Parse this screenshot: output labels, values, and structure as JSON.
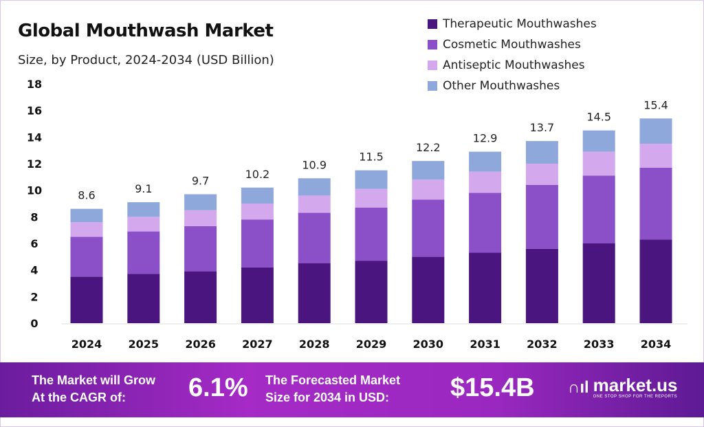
{
  "chart_data": {
    "type": "bar",
    "stacked": true,
    "title": "Global Mouthwash Market",
    "subtitle": "Size, by Product, 2024-2034 (USD Billion)",
    "categories": [
      "2024",
      "2025",
      "2026",
      "2027",
      "2028",
      "2029",
      "2030",
      "2031",
      "2032",
      "2033",
      "2034"
    ],
    "series": [
      {
        "name": "Therapeutic Mouthwashes",
        "color": "#4b1580",
        "values": [
          3.5,
          3.7,
          3.9,
          4.2,
          4.5,
          4.7,
          5.0,
          5.3,
          5.6,
          6.0,
          6.3
        ]
      },
      {
        "name": "Cosmetic Mouthwashes",
        "color": "#8b4fc8",
        "values": [
          3.0,
          3.2,
          3.4,
          3.6,
          3.8,
          4.0,
          4.3,
          4.5,
          4.8,
          5.1,
          5.4
        ]
      },
      {
        "name": "Antiseptic Mouthwashes",
        "color": "#d3a8ec",
        "values": [
          1.1,
          1.1,
          1.2,
          1.2,
          1.3,
          1.4,
          1.5,
          1.6,
          1.6,
          1.8,
          1.8
        ]
      },
      {
        "name": "Other Mouthwashes",
        "color": "#8fa8db",
        "values": [
          1.0,
          1.1,
          1.2,
          1.2,
          1.3,
          1.4,
          1.4,
          1.5,
          1.7,
          1.6,
          1.9
        ]
      }
    ],
    "totals": [
      "8.6",
      "9.1",
      "9.7",
      "10.2",
      "10.9",
      "11.5",
      "12.2",
      "12.9",
      "13.7",
      "14.5",
      "15.4"
    ],
    "yticks": [
      "0",
      "2",
      "4",
      "6",
      "8",
      "10",
      "12",
      "14",
      "16",
      "18"
    ],
    "ylim": [
      0,
      18
    ],
    "grid": false,
    "legend": "top-right"
  },
  "banner": {
    "cagr_text_1": "The Market will Grow",
    "cagr_text_2": "At the CAGR of:",
    "cagr_value": "6.1%",
    "forecast_text_1": "The Forecasted Market",
    "forecast_text_2": "Size for 2034 in USD:",
    "forecast_value": "$15.4B",
    "logo_name": "market.us",
    "logo_tagline": "ONE STOP SHOP FOR THE REPORTS"
  }
}
